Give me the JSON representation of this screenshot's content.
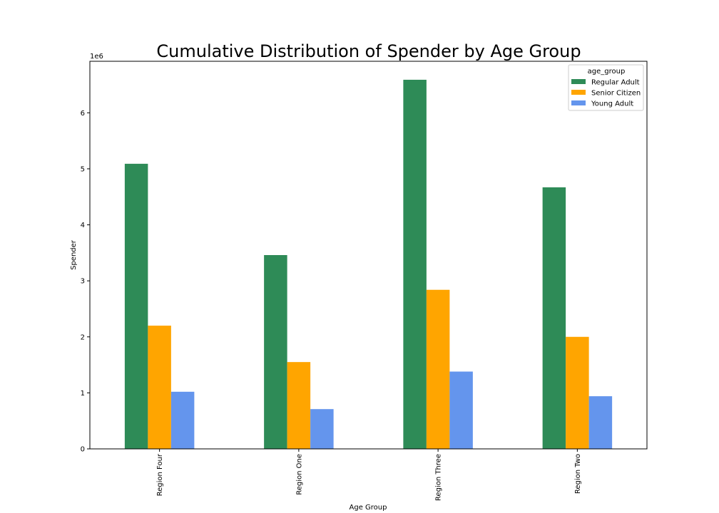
{
  "chart_data": {
    "type": "bar",
    "title": "Cumulative Distribution of Spender by Age Group",
    "xlabel": "Age Group",
    "ylabel": "Spender",
    "y_offset_label": "1e6",
    "categories": [
      "Region Four",
      "Region One",
      "Region Three",
      "Region Two"
    ],
    "series": [
      {
        "name": "Regular Adult",
        "color": "#2e8b57",
        "values": [
          5.09,
          3.46,
          6.59,
          4.67
        ]
      },
      {
        "name": "Senior Citizen",
        "color": "#ffa500",
        "values": [
          2.2,
          1.55,
          2.84,
          2.0
        ]
      },
      {
        "name": "Young Adult",
        "color": "#6495ed",
        "values": [
          1.02,
          0.71,
          1.38,
          0.94
        ]
      }
    ],
    "yticks": [
      0,
      1,
      2,
      3,
      4,
      5,
      6
    ],
    "ylim": [
      0,
      6.92
    ],
    "legend": {
      "title": "age_group",
      "placement": "top-right"
    },
    "grid": false
  }
}
